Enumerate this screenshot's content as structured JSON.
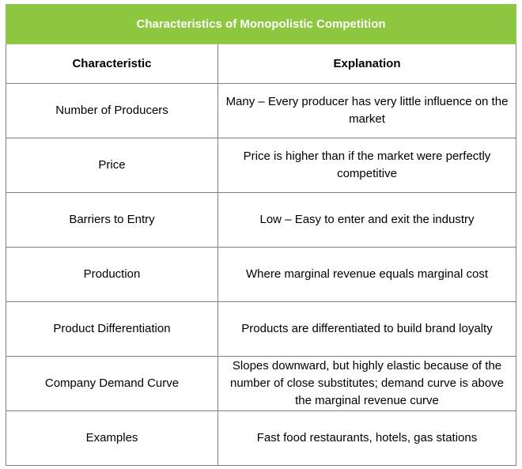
{
  "title": "Characteristics of Monopolistic Competition",
  "colors": {
    "title_bg": "#8dc63f",
    "title_text": "#ffffff",
    "border": "#7f7f7f"
  },
  "headers": {
    "characteristic": "Characteristic",
    "explanation": "Explanation"
  },
  "rows": [
    {
      "characteristic": "Number of Producers",
      "explanation": "Many – Every producer has very little influence on the market"
    },
    {
      "characteristic": "Price",
      "explanation": "Price is higher than if the market were perfectly competitive"
    },
    {
      "characteristic": "Barriers to Entry",
      "explanation": "Low – Easy to enter and exit the industry"
    },
    {
      "characteristic": "Production",
      "explanation": "Where marginal revenue equals marginal cost"
    },
    {
      "characteristic": "Product Differentiation",
      "explanation": "Products are differentiated to build brand loyalty"
    },
    {
      "characteristic": "Company Demand Curve",
      "explanation": "Slopes downward, but highly elastic because of the number of close substitutes; demand curve is above the marginal revenue curve"
    },
    {
      "characteristic": "Examples",
      "explanation": "Fast food restaurants, hotels, gas stations"
    }
  ]
}
